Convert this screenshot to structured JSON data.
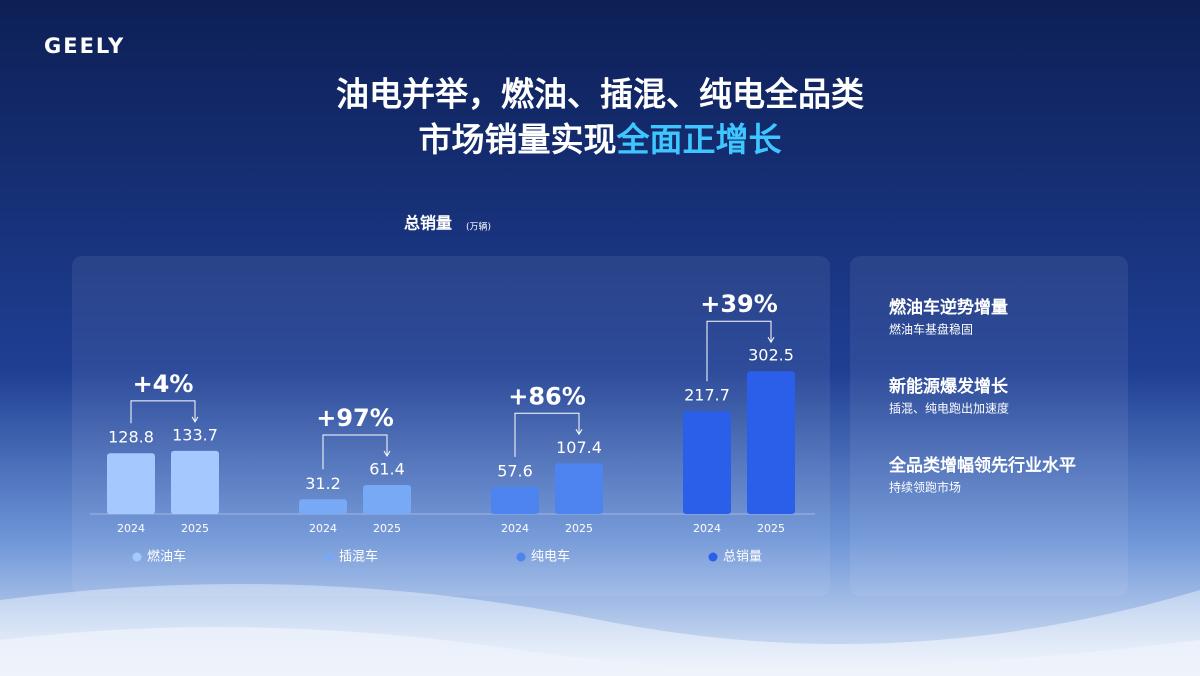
{
  "logo": "GEELY",
  "headline": {
    "line1": "油电并举，燃油、插混、纯电全品类",
    "line2_prefix": "市场销量实现",
    "line2_highlight": "全面正增长"
  },
  "chart_data": {
    "type": "grouped-bar",
    "title": "总销量",
    "unit": "(万辆)",
    "groups": [
      {
        "name": "燃油车",
        "color": "#a4c9ff",
        "categories": [
          "2024",
          "2025"
        ],
        "values": [
          128.8,
          133.7
        ],
        "growth": "+4%"
      },
      {
        "name": "插混车",
        "color": "#78a9f4",
        "categories": [
          "2024",
          "2025"
        ],
        "values": [
          31.2,
          61.4
        ],
        "growth": "+97%"
      },
      {
        "name": "纯电车",
        "color": "#4d84ef",
        "categories": [
          "2024",
          "2025"
        ],
        "values": [
          57.6,
          107.4
        ],
        "growth": "+86%"
      },
      {
        "name": "总销量",
        "color": "#2b5ee9",
        "categories": [
          "2024",
          "2025"
        ],
        "values": [
          217.7,
          302.5
        ],
        "growth": "+39%"
      }
    ]
  },
  "highlights": [
    {
      "title": "燃油车逆势增量",
      "text": "燃油车基盘稳固"
    },
    {
      "title": "新能源爆发增长",
      "text": "插混、纯电跑出加速度"
    },
    {
      "title": "全品类增幅领先行业水平",
      "text": "持续领跑市场"
    }
  ]
}
